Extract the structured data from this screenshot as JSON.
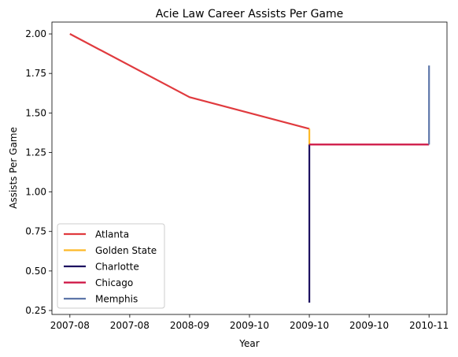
{
  "chart_data": {
    "type": "line",
    "title": "Acie Law Career Assists Per Game",
    "xlabel": "Year",
    "ylabel": "Assists Per Game",
    "x_ticks": [
      {
        "pos": 0,
        "label": "2007-08"
      },
      {
        "pos": 0.5,
        "label": "2007-08"
      },
      {
        "pos": 1,
        "label": "2008-09"
      },
      {
        "pos": 1.5,
        "label": "2009-10"
      },
      {
        "pos": 2,
        "label": "2009-10"
      },
      {
        "pos": 2.5,
        "label": "2009-10"
      },
      {
        "pos": 3,
        "label": "2010-11"
      }
    ],
    "xlim": [
      -0.15,
      3.15
    ],
    "ylim": [
      0.225,
      2.075
    ],
    "y_ticks": [
      "0.25",
      "0.50",
      "0.75",
      "1.00",
      "1.25",
      "1.50",
      "1.75",
      "2.00"
    ],
    "grid": false,
    "legend_position": "lower-left",
    "series": [
      {
        "name": "Atlanta",
        "color": "#E03A3E",
        "points": [
          [
            0,
            2.0
          ],
          [
            1,
            1.6
          ],
          [
            2,
            1.4
          ]
        ]
      },
      {
        "name": "Golden State",
        "color": "#FDB927",
        "points": [
          [
            2,
            1.4
          ],
          [
            2,
            1.3
          ]
        ]
      },
      {
        "name": "Charlotte",
        "color": "#1D1160",
        "points": [
          [
            2,
            1.3
          ],
          [
            2,
            0.3
          ]
        ]
      },
      {
        "name": "Chicago",
        "color": "#CE1141",
        "points": [
          [
            2,
            1.3
          ],
          [
            3,
            1.3
          ]
        ]
      },
      {
        "name": "Memphis",
        "color": "#5D76A9",
        "points": [
          [
            3,
            1.3
          ],
          [
            3,
            1.8
          ]
        ]
      }
    ]
  }
}
